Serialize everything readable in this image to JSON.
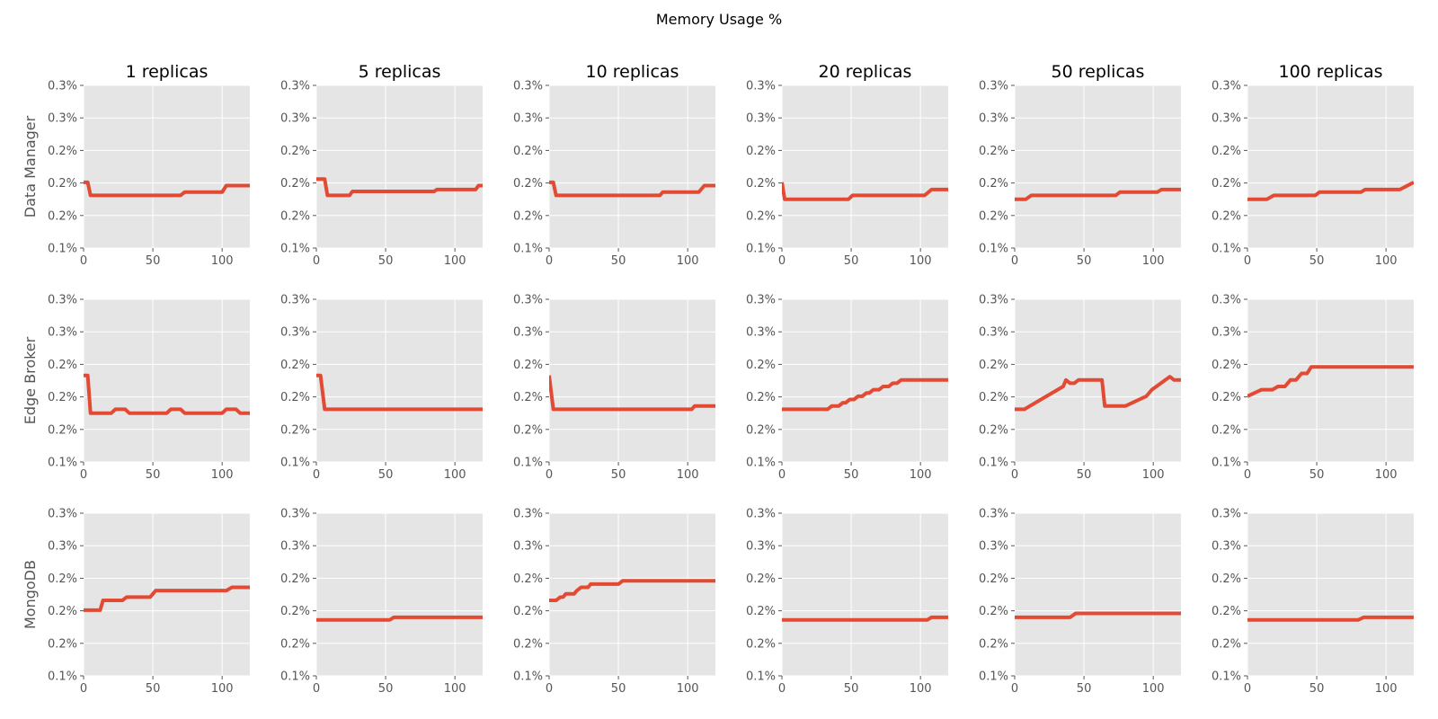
{
  "title": "Memory Usage %",
  "colors": {
    "line": "#E24A33",
    "panel_bg": "#E5E5E5",
    "grid": "#FFFFFF",
    "tick_text": "#555555"
  },
  "chart_data": {
    "type": "line",
    "title": "Memory Usage %",
    "layout": "3x6 small multiples",
    "grid": true,
    "columns": [
      "1 replicas",
      "5 replicas",
      "10 replicas",
      "20 replicas",
      "50 replicas",
      "100 replicas"
    ],
    "rows": [
      "Data Manager",
      "Edge Broker",
      "MongoDB"
    ],
    "xlim": [
      0,
      120
    ],
    "ylim": [
      0.001,
      0.0035
    ],
    "xticks": [
      0,
      50,
      100
    ],
    "xtick_labels": [
      "0",
      "50",
      "100"
    ],
    "yticks": [
      0.001,
      0.0015,
      0.002,
      0.0025,
      0.003,
      0.0035
    ],
    "ytick_labels": [
      "0.1%",
      "0.2%",
      "0.2%",
      "0.2%",
      "0.3%",
      "0.3%"
    ],
    "panels": [
      [
        {
          "x": [
            0,
            3,
            5,
            70,
            73,
            100,
            103,
            120
          ],
          "y": [
            0.00201,
            0.00201,
            0.00181,
            0.00181,
            0.00186,
            0.00186,
            0.00196,
            0.00196
          ]
        },
        {
          "x": [
            0,
            6,
            8,
            24,
            26,
            85,
            87,
            115,
            117,
            120
          ],
          "y": [
            0.00206,
            0.00206,
            0.00181,
            0.00181,
            0.00187,
            0.00187,
            0.0019,
            0.0019,
            0.00196,
            0.00196
          ]
        },
        {
          "x": [
            0,
            3,
            5,
            80,
            82,
            108,
            112,
            120
          ],
          "y": [
            0.00201,
            0.00201,
            0.00181,
            0.00181,
            0.00186,
            0.00186,
            0.00196,
            0.00196
          ]
        },
        {
          "x": [
            0,
            2,
            48,
            51,
            103,
            108,
            120
          ],
          "y": [
            0.00201,
            0.00175,
            0.00175,
            0.00181,
            0.00181,
            0.0019,
            0.0019
          ]
        },
        {
          "x": [
            0,
            8,
            12,
            73,
            76,
            103,
            106,
            120
          ],
          "y": [
            0.00175,
            0.00175,
            0.00181,
            0.00181,
            0.00186,
            0.00186,
            0.0019,
            0.0019
          ]
        },
        {
          "x": [
            0,
            14,
            19,
            49,
            52,
            82,
            85,
            110,
            120
          ],
          "y": [
            0.00175,
            0.00175,
            0.00181,
            0.00181,
            0.00186,
            0.00186,
            0.0019,
            0.0019,
            0.00201
          ]
        }
      ],
      [
        {
          "x": [
            0,
            3,
            5,
            20,
            23,
            30,
            33,
            60,
            63,
            70,
            73,
            100,
            103,
            110,
            113,
            120
          ],
          "y": [
            0.00233,
            0.00233,
            0.00175,
            0.00175,
            0.00181,
            0.00181,
            0.00175,
            0.00175,
            0.00181,
            0.00181,
            0.00175,
            0.00175,
            0.00181,
            0.00181,
            0.00175,
            0.00175
          ]
        },
        {
          "x": [
            0,
            3,
            6,
            120
          ],
          "y": [
            0.00233,
            0.00233,
            0.00181,
            0.00181
          ]
        },
        {
          "x": [
            0,
            3,
            103,
            105,
            120
          ],
          "y": [
            0.00233,
            0.00181,
            0.00181,
            0.00186,
            0.00186
          ]
        },
        {
          "x": [
            0,
            33,
            36,
            41,
            44,
            46,
            49,
            52,
            55,
            58,
            61,
            63,
            66,
            70,
            73,
            77,
            80,
            83,
            86,
            120
          ],
          "y": [
            0.00181,
            0.00181,
            0.00186,
            0.00186,
            0.00191,
            0.00191,
            0.00196,
            0.00196,
            0.00201,
            0.00201,
            0.00206,
            0.00206,
            0.00211,
            0.00211,
            0.00216,
            0.00216,
            0.00221,
            0.00221,
            0.00226,
            0.00226
          ]
        },
        {
          "x": [
            0,
            7,
            35,
            37,
            40,
            43,
            46,
            50,
            63,
            65,
            80,
            95,
            99,
            112,
            115,
            120
          ],
          "y": [
            0.00181,
            0.00181,
            0.00216,
            0.00226,
            0.00221,
            0.00221,
            0.00226,
            0.00226,
            0.00226,
            0.00186,
            0.00186,
            0.00201,
            0.00211,
            0.00231,
            0.00226,
            0.00226
          ]
        },
        {
          "x": [
            0,
            10,
            14,
            18,
            22,
            27,
            31,
            35,
            39,
            43,
            46,
            120
          ],
          "y": [
            0.00201,
            0.00211,
            0.00211,
            0.00211,
            0.00216,
            0.00216,
            0.00226,
            0.00226,
            0.00236,
            0.00236,
            0.00246,
            0.00246
          ]
        }
      ],
      [
        {
          "x": [
            0,
            12,
            14,
            28,
            31,
            48,
            52,
            103,
            107,
            120
          ],
          "y": [
            0.00201,
            0.00201,
            0.00216,
            0.00216,
            0.00221,
            0.00221,
            0.00231,
            0.00231,
            0.00236,
            0.00236
          ]
        },
        {
          "x": [
            0,
            53,
            56,
            120
          ],
          "y": [
            0.00186,
            0.00186,
            0.0019,
            0.0019
          ]
        },
        {
          "x": [
            0,
            5,
            8,
            10,
            12,
            14,
            18,
            20,
            23,
            28,
            30,
            33,
            50,
            53,
            120
          ],
          "y": [
            0.00216,
            0.00216,
            0.00221,
            0.00221,
            0.00226,
            0.00226,
            0.00226,
            0.00231,
            0.00236,
            0.00236,
            0.00241,
            0.00241,
            0.00241,
            0.00246,
            0.00246
          ]
        },
        {
          "x": [
            0,
            105,
            108,
            120
          ],
          "y": [
            0.00186,
            0.00186,
            0.0019,
            0.0019
          ]
        },
        {
          "x": [
            0,
            40,
            44,
            120
          ],
          "y": [
            0.0019,
            0.0019,
            0.00196,
            0.00196
          ]
        },
        {
          "x": [
            0,
            80,
            84,
            120
          ],
          "y": [
            0.00186,
            0.00186,
            0.0019,
            0.0019
          ]
        }
      ]
    ]
  }
}
